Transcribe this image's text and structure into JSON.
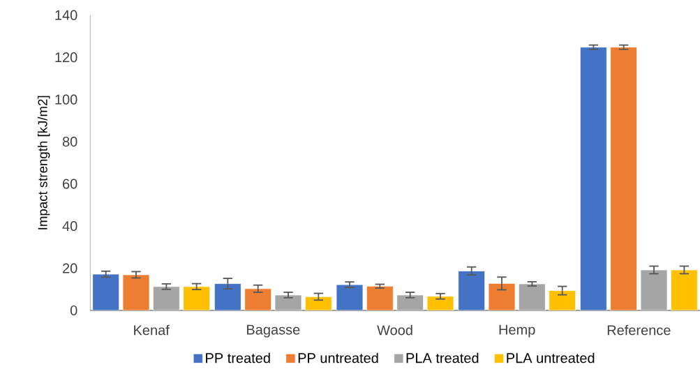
{
  "chart_data": {
    "type": "bar",
    "ylabel": "Impact strength [kJ/m2]",
    "categories": [
      "Kenaf",
      "Bagasse",
      "Wood",
      "Hemp",
      "Reference"
    ],
    "series": [
      {
        "name": "PP treated",
        "color": "#4472c4",
        "values": [
          17.2,
          12.7,
          12.2,
          18.7,
          124.8
        ],
        "errors": [
          1.4,
          2.5,
          1.3,
          1.9,
          1.0
        ]
      },
      {
        "name": "PP untreated",
        "color": "#ed7d31",
        "values": [
          16.9,
          10.3,
          11.5,
          12.8,
          124.8
        ],
        "errors": [
          1.5,
          1.7,
          0.9,
          3.0,
          1.0
        ]
      },
      {
        "name": "PLA treated",
        "color": "#a5a5a5",
        "values": [
          11.3,
          7.3,
          7.3,
          12.6,
          19.2
        ],
        "errors": [
          1.3,
          1.3,
          1.3,
          1.0,
          1.8
        ]
      },
      {
        "name": "PLA untreated",
        "color": "#ffc000",
        "values": [
          11.3,
          6.5,
          6.7,
          9.4,
          19.2
        ],
        "errors": [
          1.4,
          1.6,
          1.3,
          2.0,
          1.8
        ]
      }
    ],
    "ylim": [
      0,
      140
    ],
    "yticks": [
      0,
      20,
      40,
      60,
      80,
      100,
      120,
      140
    ],
    "legend": "bottom"
  }
}
